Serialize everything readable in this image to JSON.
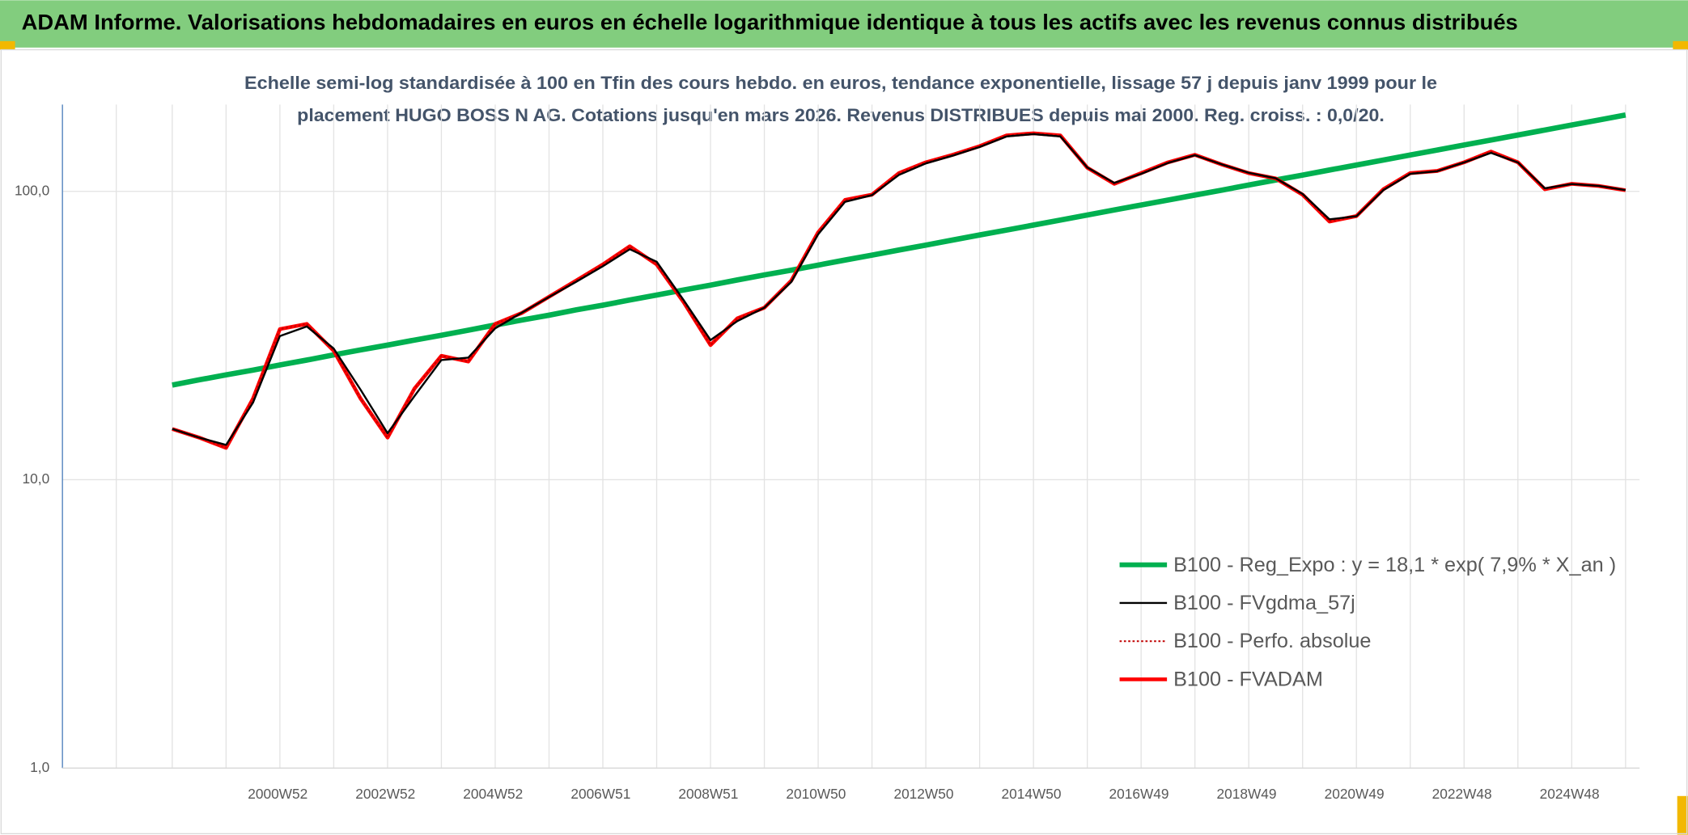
{
  "chart_data": {
    "type": "line",
    "title": "ADAM Informe. Valorisations hebdomadaires en euros en échelle logarithmique identique à tous les actifs avec les revenus connus distribués",
    "subtitle": [
      "Echelle semi-log standardisée à 100 en Tfin des cours hebdo. en euros, tendance exponentielle, lissage 57 j depuis janv 1999 pour le",
      "placement HUGO BOSS N AG. Cotations jusqu'en mars 2026. Revenus DISTRIBUES depuis mai 2000. Reg. croiss. : 0,0/20."
    ],
    "categories": [
      null,
      null,
      null,
      null,
      "2000W52",
      null,
      null,
      null,
      "2002W52",
      null,
      null,
      null,
      "2004W52",
      null,
      null,
      null,
      "2006W51",
      null,
      null,
      null,
      "2008W51",
      null,
      null,
      null,
      "2010W50",
      null,
      null,
      null,
      "2012W50",
      null,
      null,
      null,
      "2014W50",
      null,
      null,
      null,
      "2016W49",
      null,
      null,
      null,
      "2018W49",
      null,
      null,
      null,
      "2020W49",
      null,
      null,
      null,
      "2022W48",
      null,
      null,
      null,
      "2024W48",
      null,
      null
    ],
    "log_scale": true,
    "ylim": [
      1,
      200
    ],
    "yticks": [
      {
        "value": 1,
        "label": "1,0"
      },
      {
        "value": 10,
        "label": "10,0"
      },
      {
        "value": 100,
        "label": "100,0"
      }
    ],
    "grid": true,
    "legend": "lower right",
    "series": [
      {
        "name": "B100 - Reg_Expo : y = 18,1 * exp( 7,9% *  X_an )",
        "color": "#00b050",
        "style": "solid",
        "values": [
          21.3,
          22.2,
          23.1,
          24.0,
          25.0,
          26.0,
          27.1,
          28.2,
          29.3,
          30.5,
          31.7,
          33.0,
          34.4,
          35.8,
          37.2,
          38.8,
          40.3,
          42.0,
          43.7,
          45.5,
          47.3,
          49.3,
          51.3,
          53.3,
          55.5,
          57.8,
          60.1,
          62.6,
          65.1,
          67.8,
          70.6,
          73.4,
          76.4,
          79.5,
          82.8,
          86.2,
          89.7,
          93.3,
          97.1,
          101,
          105.2,
          109.5,
          113.9,
          118.6,
          123.4,
          128.4,
          133.7,
          139.1,
          144.8,
          150.7,
          156.8,
          163.2,
          169.9,
          176.8,
          184.0
        ]
      },
      {
        "name": "B100 - FVgdma_57j",
        "color": "#000000",
        "style": "solid",
        "values": [
          15.0,
          14.0,
          13.2,
          18.5,
          31.5,
          34.0,
          28.5,
          20.5,
          14.5,
          19.5,
          26.0,
          26.5,
          33.5,
          38.0,
          43.0,
          48.5,
          55.0,
          63.0,
          57.0,
          42.0,
          30.5,
          35.5,
          39.5,
          48.5,
          71.0,
          92.0,
          97.0,
          114.0,
          125.0,
          133.0,
          142.5,
          155.0,
          158.0,
          155.0,
          121.0,
          107.0,
          115.0,
          125.5,
          133.5,
          124.0,
          116.0,
          111.0,
          98.0,
          80.0,
          82.0,
          101.0,
          115.0,
          117.5,
          126.0,
          136.0,
          126.0,
          102.5,
          106.0,
          104.5,
          101.0
        ]
      },
      {
        "name": "B100 - Perfo. absolue",
        "color": "#c00000",
        "style": "dotted",
        "values": [
          15.0,
          14.0,
          12.9,
          19.1,
          33.3,
          34.7,
          28.0,
          19.1,
          14.0,
          20.7,
          26.9,
          25.7,
          34.7,
          37.9,
          43.1,
          49.0,
          55.8,
          64.5,
          55.8,
          41.3,
          29.3,
          36.3,
          39.5,
          49.0,
          72.1,
          93.4,
          97.4,
          115.7,
          126.1,
          133.9,
          143.5,
          156.3,
          159,
          156.3,
          120.8,
          106.2,
          115.7,
          126.1,
          133.9,
          123.9,
          115.7,
          110.9,
          97.4,
          78.6,
          82.1,
          101.7,
          115.7,
          117.7,
          126.1,
          137.4,
          126.1,
          101.7,
          106.2,
          104.4,
          100.9
        ]
      },
      {
        "name": "B100 - FVADAM",
        "color": "#ff0000",
        "style": "solid",
        "values": [
          15.0,
          14.0,
          12.9,
          19.1,
          33.3,
          34.7,
          28.0,
          19.1,
          14.0,
          20.7,
          26.9,
          25.7,
          34.7,
          37.9,
          43.1,
          49.0,
          55.8,
          64.5,
          55.8,
          41.3,
          29.3,
          36.3,
          39.5,
          49.0,
          72.1,
          93.4,
          97.4,
          115.7,
          126.1,
          133.9,
          143.5,
          156.3,
          159,
          156.3,
          120.8,
          106.2,
          115.7,
          126.1,
          133.9,
          123.9,
          115.7,
          110.9,
          97.4,
          78.6,
          82.1,
          101.7,
          115.7,
          117.7,
          126.1,
          137.4,
          126.1,
          101.7,
          106.2,
          104.4,
          100.9
        ]
      }
    ]
  }
}
